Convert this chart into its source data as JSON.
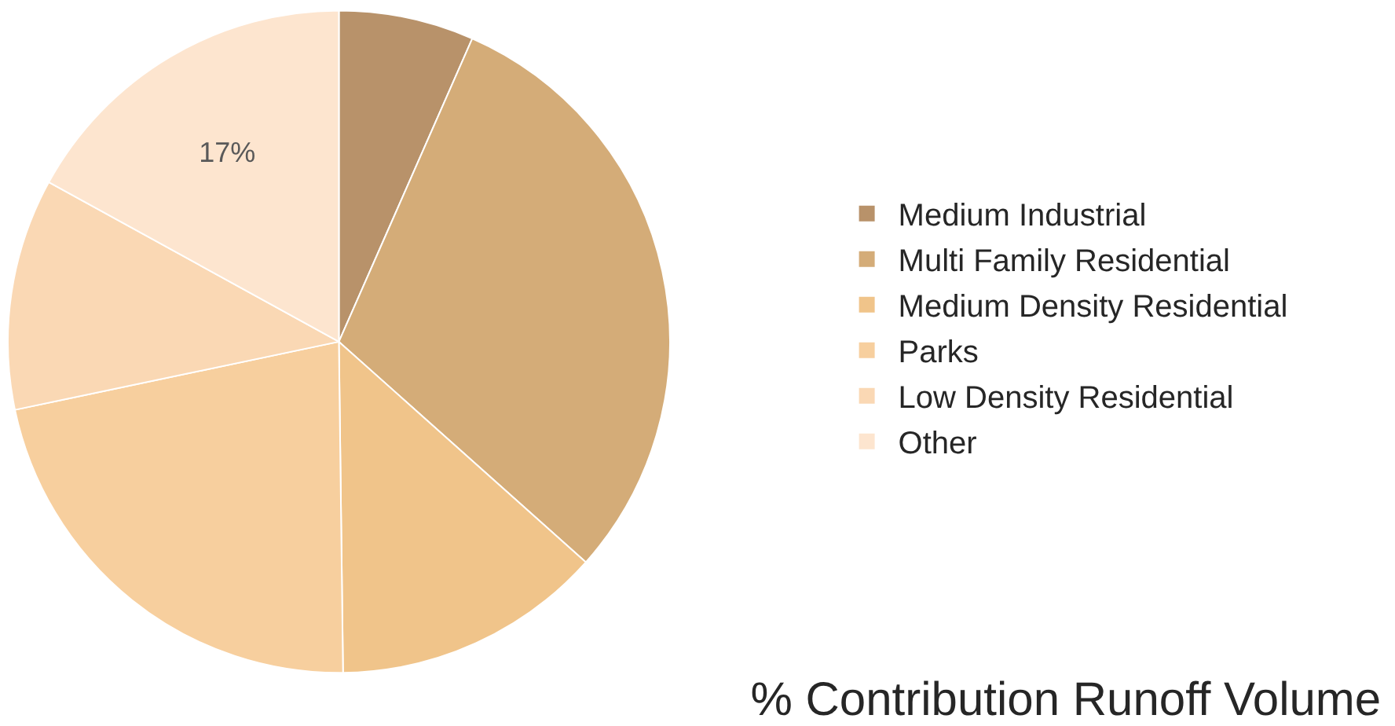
{
  "chart_data": {
    "type": "pie",
    "title": "% Contribution Runoff Volume",
    "categories": [
      "Medium Industrial",
      "Multi Family Residential",
      "Medium Density Residential",
      "Parks",
      "Low Density Residential",
      "Other"
    ],
    "values": [
      6.6,
      30,
      13.2,
      21.9,
      11.3,
      17
    ],
    "colors": [
      "#b8926a",
      "#d4ac78",
      "#f0c48a",
      "#f7cf9e",
      "#fad8b4",
      "#fde5cf"
    ],
    "value_labels": [
      null,
      null,
      null,
      null,
      null,
      "17%"
    ],
    "legend": "right"
  }
}
